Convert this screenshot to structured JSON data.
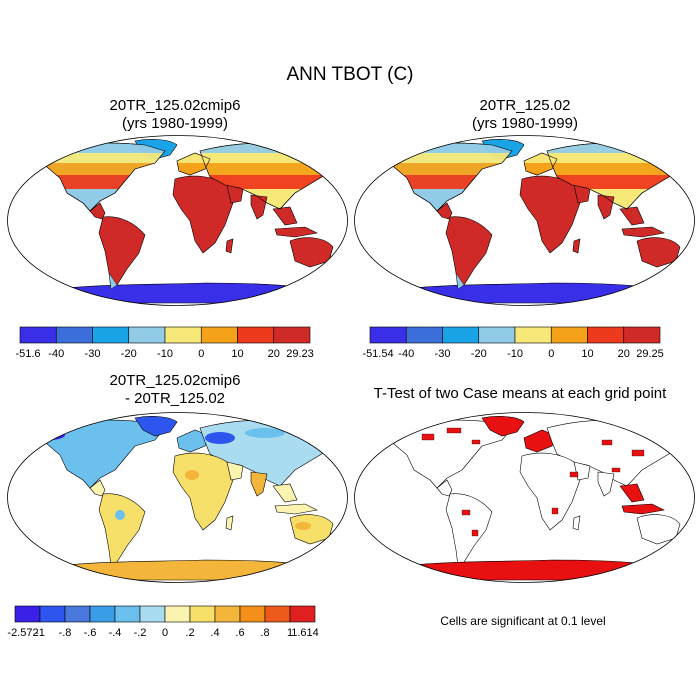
{
  "title": "ANN TBOT (C)",
  "colors": {
    "deep_cold": "#3a2fe8",
    "cold": "#3d6fdc",
    "cool": "#1aa3e6",
    "mild_cool": "#92cbe8",
    "mild": "#f6e97a",
    "warm": "#f4a21a",
    "hot": "#ee3a1c",
    "hottest": "#cf2a28",
    "sig_red": "#e81010"
  },
  "panels": [
    {
      "title_line1": "20TR_125.02cmip6",
      "title_line2": "(yrs 1980-1999)",
      "colorbar": {
        "labels": [
          "-51.6",
          "-40",
          "-30",
          "-20",
          "-10",
          "0",
          "10",
          "20",
          "29.23"
        ],
        "colors": [
          "#3a2fe8",
          "#3d6fdc",
          "#1aa3e6",
          "#92cbe8",
          "#f6e97a",
          "#f4a21a",
          "#ee3a1c",
          "#cf2a28"
        ]
      }
    },
    {
      "title_line1": "20TR_125.02",
      "title_line2": "(yrs 1980-1999)",
      "colorbar": {
        "labels": [
          "-51.54",
          "-40",
          "-30",
          "-20",
          "-10",
          "0",
          "10",
          "20",
          "29.25"
        ],
        "colors": [
          "#3a2fe8",
          "#3d6fdc",
          "#1aa3e6",
          "#92cbe8",
          "#f6e97a",
          "#f4a21a",
          "#ee3a1c",
          "#cf2a28"
        ]
      }
    },
    {
      "title_line1": "20TR_125.02cmip6",
      "title_line2": "- 20TR_125.02",
      "colorbar": {
        "labels": [
          "-2.572",
          "-1",
          "-.8",
          "-.6",
          "-.4",
          "-.2",
          "0",
          ".2",
          ".4",
          ".6",
          ".8",
          "1",
          "1.614"
        ],
        "colors": [
          "#3b20e8",
          "#2e55ee",
          "#4a78dc",
          "#3a9ee6",
          "#6cc0ee",
          "#a9dcf0",
          "#fbf3b0",
          "#f7e06a",
          "#f4b63a",
          "#f4901a",
          "#ee5a1c",
          "#e02020"
        ]
      }
    },
    {
      "title": "T-Test of two Case means at each grid point",
      "note": "Cells are significant at 0.1 level"
    }
  ]
}
